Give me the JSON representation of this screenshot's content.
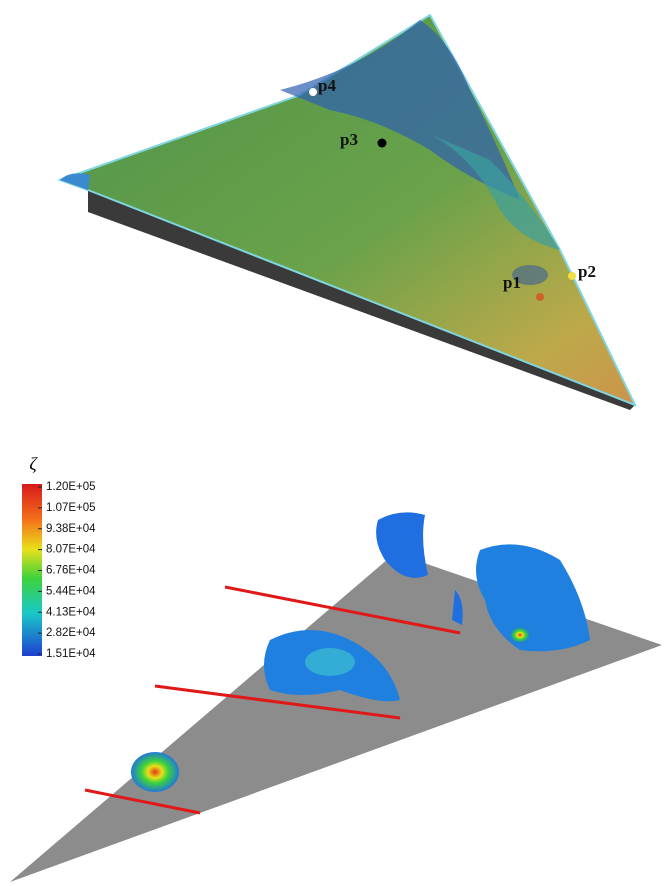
{
  "points": [
    {
      "label": "p1"
    },
    {
      "label": "p2"
    },
    {
      "label": "p3"
    },
    {
      "label": "p4"
    }
  ],
  "colorbar": {
    "title": "ζ",
    "labels": [
      "1.20E+05",
      "1.07E+05",
      "9.38E+04",
      "8.07E+04",
      "6.76E+04",
      "5.44E+04",
      "4.13E+04",
      "2.82E+04",
      "1.51E+04"
    ]
  }
}
